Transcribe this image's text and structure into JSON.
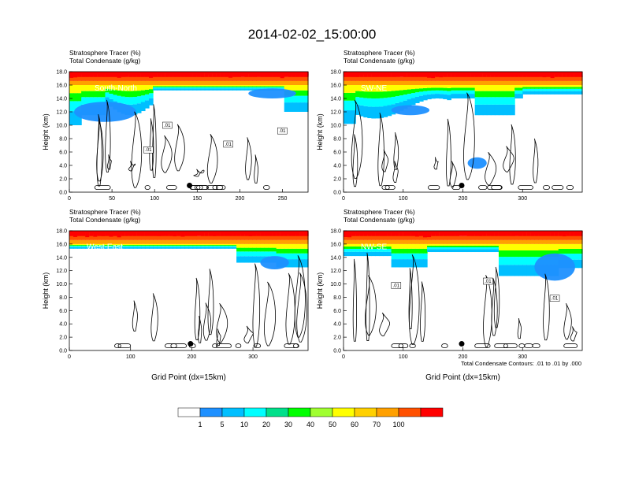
{
  "title": "2014-02-02_15:00:00",
  "footnote": "Total Condensate Contours: .01 to .01 by .000",
  "colorbar": {
    "labels": [
      "1",
      "5",
      "10",
      "20",
      "30",
      "40",
      "50",
      "60",
      "70",
      "100"
    ],
    "colors": [
      "#ffffff",
      "#1e90ff",
      "#00bfff",
      "#00ffff",
      "#00e08a",
      "#00ff00",
      "#a0ff30",
      "#ffff00",
      "#ffd000",
      "#ffa000",
      "#ff5000",
      "#ff0000"
    ]
  },
  "chart_data": [
    {
      "type": "heatmap",
      "panel_label": "South-North",
      "title_line1": "Stratosphere Tracer   (%)",
      "title_line2": "Total Condensate   (g/kg)",
      "xlabel": "",
      "ylabel": "Height (km)",
      "xlim": [
        0,
        280
      ],
      "ylim": [
        0,
        18
      ],
      "xticks": [
        "0",
        "50",
        "100",
        "150",
        "200",
        "250"
      ],
      "xtick_values": [
        0,
        50,
        100,
        150,
        200,
        250
      ],
      "yticks": [
        "0.0",
        "2.0",
        "4.0",
        "6.0",
        "8.0",
        "10.0",
        "12.0",
        "14.0",
        "16.0",
        "18.0"
      ],
      "contour_labels": [
        ".01",
        ".01",
        ".01",
        ".01"
      ],
      "marker": {
        "x": 141,
        "y": 1.0
      }
    },
    {
      "type": "heatmap",
      "panel_label": "SW-NE",
      "title_line1": "Stratosphere Tracer   (%)",
      "title_line2": "Total Condensate   (g/kg)",
      "xlabel": "",
      "ylabel": "Height (km)",
      "xlim": [
        0,
        400
      ],
      "ylim": [
        0,
        18
      ],
      "xticks": [
        "0",
        "100",
        "200",
        "300"
      ],
      "xtick_values": [
        0,
        100,
        200,
        300
      ],
      "yticks": [
        "0.0",
        "2.0",
        "4.0",
        "6.0",
        "8.0",
        "10.0",
        "12.0",
        "14.0",
        "16.0",
        "18.0"
      ],
      "contour_labels": [],
      "marker": {
        "x": 198,
        "y": 1.0
      }
    },
    {
      "type": "heatmap",
      "panel_label": "West-East",
      "title_line1": "Stratosphere Tracer   (%)",
      "title_line2": "Total Condensate   (g/kg)",
      "xlabel": "Grid Point (dx=15km)",
      "ylabel": "Height (km)",
      "xlim": [
        0,
        390
      ],
      "ylim": [
        0,
        18
      ],
      "xticks": [
        "0",
        "100",
        "200",
        "300"
      ],
      "xtick_values": [
        0,
        100,
        200,
        300
      ],
      "yticks": [
        "0.0",
        "2.0",
        "4.0",
        "6.0",
        "8.0",
        "10.0",
        "12.0",
        "14.0",
        "16.0",
        "18.0"
      ],
      "contour_labels": [],
      "marker": {
        "x": 198,
        "y": 1.0
      }
    },
    {
      "type": "heatmap",
      "panel_label": "NW-SE",
      "title_line1": "Stratosphere Tracer   (%)",
      "title_line2": "Total Condensate   (g/kg)",
      "xlabel": "Grid Point (dx=15km)",
      "ylabel": "Height (km)",
      "xlim": [
        0,
        400
      ],
      "ylim": [
        0,
        18
      ],
      "xticks": [
        "0",
        "100",
        "200",
        "300"
      ],
      "xtick_values": [
        0,
        100,
        200,
        300
      ],
      "yticks": [
        "0.0",
        "2.0",
        "4.0",
        "6.0",
        "8.0",
        "10.0",
        "12.0",
        "14.0",
        "16.0",
        "18.0"
      ],
      "contour_labels": [
        ".01",
        ".01",
        ".01"
      ],
      "marker": {
        "x": 198,
        "y": 1.0
      }
    }
  ]
}
